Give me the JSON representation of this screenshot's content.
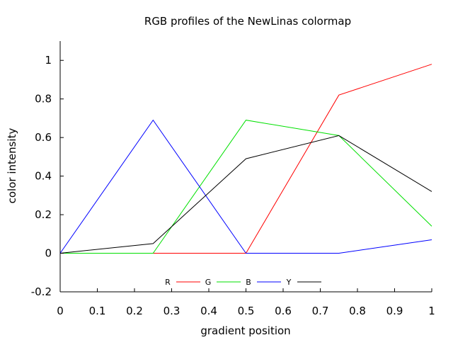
{
  "chart_data": {
    "type": "line",
    "title": "RGB profiles of the NewLinas colormap",
    "xlabel": "gradient position",
    "ylabel": "color intensity",
    "xlim": [
      0,
      1
    ],
    "ylim": [
      -0.2,
      1.1
    ],
    "x_ticks": [
      "0",
      "0.1",
      "0.2",
      "0.3",
      "0.4",
      "0.5",
      "0.6",
      "0.7",
      "0.8",
      "0.9",
      "1"
    ],
    "x_tick_values": [
      0,
      0.1,
      0.2,
      0.3,
      0.4,
      0.5,
      0.6,
      0.7,
      0.8,
      0.9,
      1
    ],
    "y_ticks": [
      "-0.2",
      "0",
      "0.2",
      "0.4",
      "0.6",
      "0.8",
      "1"
    ],
    "y_tick_values": [
      -0.2,
      0,
      0.2,
      0.4,
      0.6,
      0.8,
      1
    ],
    "grid": false,
    "legend_position": "bottom-center",
    "x": [
      0,
      0.25,
      0.5,
      0.75,
      1
    ],
    "series": [
      {
        "name": "R",
        "color": "#ff0000",
        "values": [
          0,
          0,
          0,
          0.82,
          0.98
        ]
      },
      {
        "name": "G",
        "color": "#00e000",
        "values": [
          0,
          0,
          0.69,
          0.61,
          0.14
        ]
      },
      {
        "name": "B",
        "color": "#0000ff",
        "values": [
          0,
          0.69,
          0,
          0,
          0.07
        ]
      },
      {
        "name": "Y",
        "color": "#000000",
        "values": [
          0,
          0.05,
          0.49,
          0.61,
          0.32
        ]
      }
    ]
  }
}
